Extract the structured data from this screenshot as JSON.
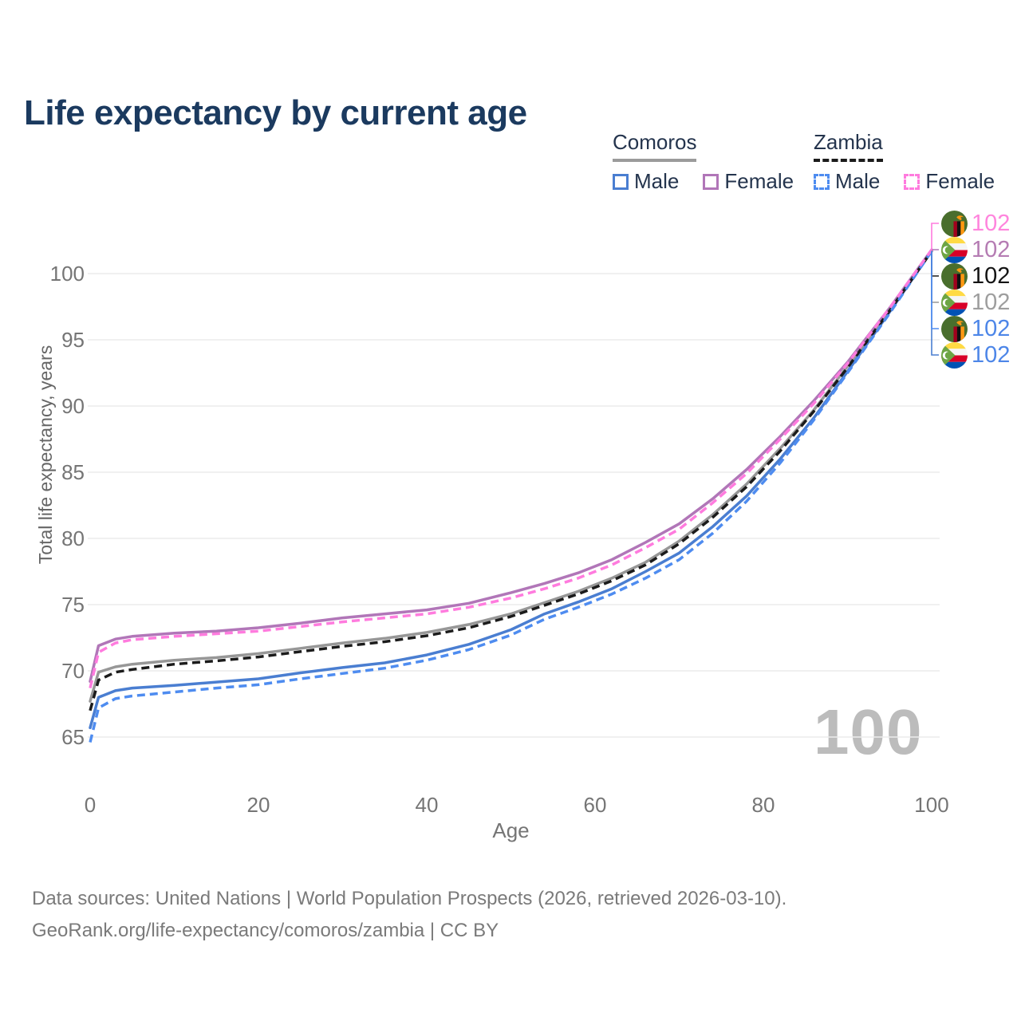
{
  "title": "Life expectancy by current age",
  "watermark": "100",
  "legend": {
    "groups": [
      {
        "label": "Comoros",
        "line_style": "solid",
        "underline_color": "#9b9b9b",
        "items": [
          {
            "label": "Male",
            "color": "#4a7ed1",
            "dash": false
          },
          {
            "label": "Female",
            "color": "#b176b8",
            "dash": false
          }
        ]
      },
      {
        "label": "Zambia",
        "line_style": "dashed",
        "underline_color": "#1b1b1b",
        "items": [
          {
            "label": "Male",
            "color": "#4e8cf0",
            "dash": true
          },
          {
            "label": "Female",
            "color": "#ff7bde",
            "dash": true
          }
        ]
      }
    ]
  },
  "footer": {
    "line1": "Data sources: United Nations | World Population Prospects (2026, retrieved 2026-03-10).",
    "line2": "GeoRank.org/life-expectancy/comoros/zambia | CC BY"
  },
  "chart_data": {
    "type": "line",
    "title": "Life expectancy by current age",
    "xlabel": "Age",
    "ylabel": "Total life expectancy, years",
    "xlim": [
      0,
      100
    ],
    "ylim": [
      63,
      104
    ],
    "xticks": [
      0,
      20,
      40,
      60,
      80,
      100
    ],
    "yticks": [
      65,
      70,
      75,
      80,
      85,
      90,
      95,
      100
    ],
    "grid": "horizontal",
    "grid_color": "#ebebeb",
    "tick_color": "#757575",
    "x": [
      0,
      1,
      3,
      5,
      10,
      15,
      20,
      25,
      30,
      35,
      40,
      45,
      50,
      54,
      58,
      62,
      66,
      70,
      74,
      78,
      82,
      86,
      90,
      95,
      100
    ],
    "series": [
      {
        "name": "Comoros Female",
        "country": "comoros",
        "sex": "female",
        "color": "#b176b8",
        "dash": false,
        "end_label": "102",
        "label_row": 1,
        "values": [
          69.2,
          71.9,
          72.4,
          72.6,
          72.85,
          73.0,
          73.25,
          73.6,
          74.0,
          74.3,
          74.6,
          75.1,
          75.9,
          76.6,
          77.4,
          78.4,
          79.7,
          81.1,
          83.0,
          85.2,
          87.7,
          90.4,
          93.3,
          97.4,
          101.8
        ]
      },
      {
        "name": "Zambia Female",
        "country": "zambia",
        "sex": "female",
        "color": "#ff7bde",
        "dash": true,
        "end_label": "102",
        "label_row": 0,
        "values": [
          68.7,
          71.4,
          72.1,
          72.35,
          72.6,
          72.8,
          73.0,
          73.35,
          73.7,
          74.0,
          74.3,
          74.8,
          75.5,
          76.2,
          77.0,
          78.0,
          79.3,
          80.7,
          82.7,
          84.9,
          87.5,
          90.2,
          93.2,
          97.4,
          101.8
        ]
      },
      {
        "name": "Comoros",
        "country": "comoros",
        "sex": "all",
        "color": "#979797",
        "dash": false,
        "end_label": "102",
        "label_row": 3,
        "values": [
          67.7,
          69.9,
          70.3,
          70.5,
          70.8,
          71.0,
          71.3,
          71.7,
          72.1,
          72.45,
          72.9,
          73.5,
          74.3,
          75.15,
          76.0,
          77.0,
          78.2,
          79.8,
          81.8,
          84.1,
          86.8,
          89.7,
          93.0,
          97.2,
          101.7
        ]
      },
      {
        "name": "Zambia",
        "country": "zambia",
        "sex": "all",
        "color": "#1b1b1b",
        "dash": true,
        "end_label": "102",
        "label_row": 2,
        "values": [
          67.0,
          69.3,
          69.9,
          70.1,
          70.5,
          70.75,
          71.05,
          71.45,
          71.85,
          72.2,
          72.65,
          73.25,
          74.1,
          74.95,
          75.8,
          76.8,
          78.0,
          79.6,
          81.6,
          83.9,
          86.6,
          89.6,
          92.9,
          97.2,
          101.7
        ]
      },
      {
        "name": "Comoros Male",
        "country": "comoros",
        "sex": "male",
        "color": "#4a7ed1",
        "dash": false,
        "end_label": "102",
        "label_row": 5,
        "values": [
          65.7,
          68.0,
          68.5,
          68.7,
          68.9,
          69.15,
          69.4,
          69.85,
          70.25,
          70.6,
          71.2,
          72.0,
          73.1,
          74.3,
          75.2,
          76.2,
          77.5,
          78.9,
          80.9,
          83.2,
          86.0,
          89.1,
          92.6,
          97.1,
          101.7
        ]
      },
      {
        "name": "Zambia Male",
        "country": "zambia",
        "sex": "male",
        "color": "#4e8cf0",
        "dash": true,
        "end_label": "102",
        "label_row": 4,
        "values": [
          64.6,
          67.2,
          67.9,
          68.1,
          68.4,
          68.7,
          68.95,
          69.4,
          69.8,
          70.2,
          70.8,
          71.6,
          72.7,
          73.9,
          74.8,
          75.8,
          77.0,
          78.4,
          80.4,
          82.8,
          85.7,
          88.95,
          92.5,
          97.0,
          101.7
        ]
      }
    ],
    "draw_order": [
      4,
      2,
      0,
      3,
      5,
      1
    ],
    "leader_draw_order": [
      2,
      3,
      0,
      4,
      5,
      1
    ],
    "end_label_colors": {
      "Zambia Female": "#ff85dd",
      "Comoros Female": "#b57cb3",
      "Zambia": "#141414",
      "Comoros": "#9e9e9e",
      "Zambia Male": "#4d86e8",
      "Comoros Male": "#4d86e8"
    },
    "legend_position": "top-right",
    "flag_colors": {
      "zambia": {
        "field": "#496E2D",
        "eagle": "#FF9811",
        "stripe_red": "#A2001D",
        "stripe_black": "#111111",
        "stripe_orange": "#FF9811"
      },
      "comoros": {
        "yellow": "#FFDA44",
        "white": "#F5F5F5",
        "red": "#D80027",
        "blue": "#0052B4",
        "green": "#6DA544",
        "crescent": "#FFFFFF"
      }
    }
  }
}
